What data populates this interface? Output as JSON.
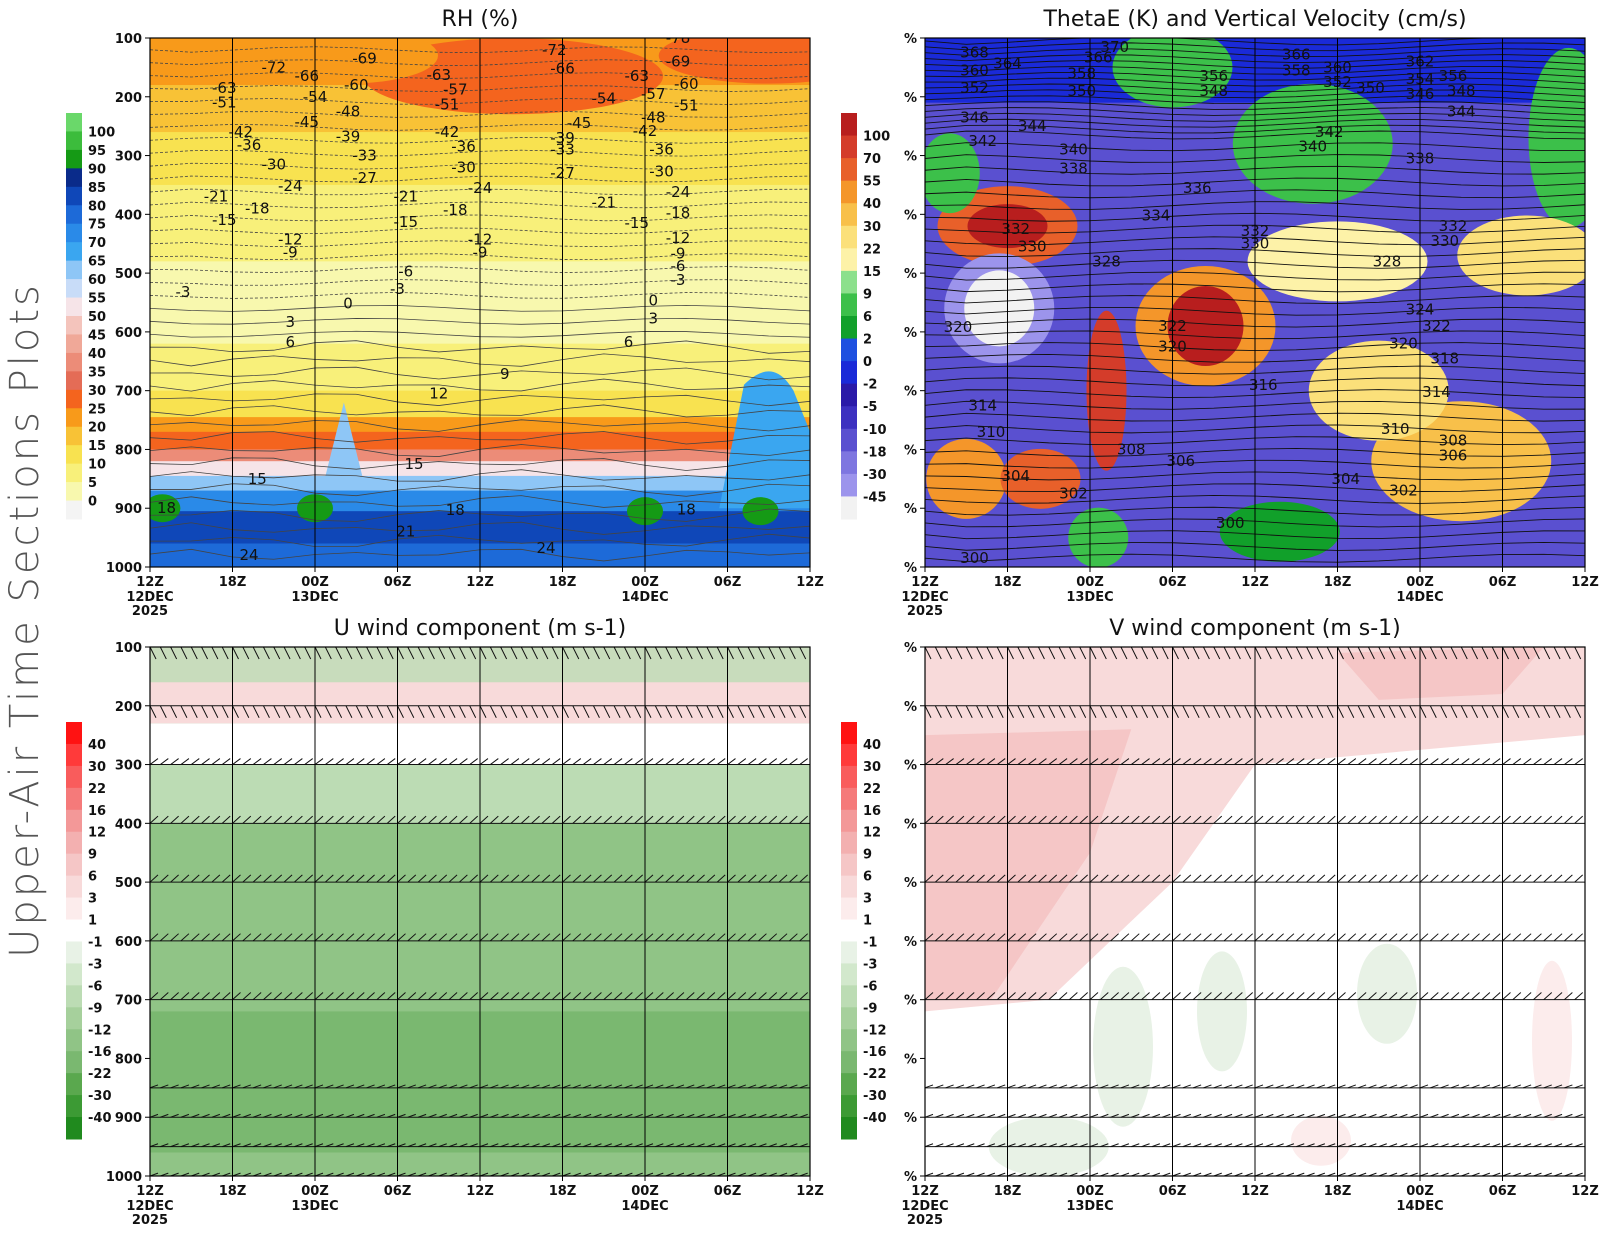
{
  "side_title": "Upper-Air Time Sections Plots",
  "time_axis": {
    "tick_labels": [
      "12Z",
      "18Z",
      "00Z",
      "06Z",
      "12Z",
      "18Z",
      "00Z",
      "06Z",
      "12Z"
    ],
    "date_labels": [
      {
        "at": 0,
        "lines": [
          "12DEC",
          "2025"
        ]
      },
      {
        "at": 2,
        "lines": [
          "13DEC"
        ]
      },
      {
        "at": 6,
        "lines": [
          "14DEC"
        ]
      }
    ]
  },
  "pressure_ticks": [
    "100",
    "200",
    "300",
    "400",
    "500",
    "600",
    "700",
    "800",
    "900",
    "1000"
  ],
  "percent_tick_label": "%",
  "chart_data": [
    {
      "type": "heatmap",
      "title": "RH (%)",
      "ylim": [
        100,
        1000
      ],
      "colorbar": {
        "labels": [
          "100",
          "95",
          "90",
          "85",
          "80",
          "75",
          "70",
          "65",
          "60",
          "55",
          "50",
          "45",
          "40",
          "35",
          "30",
          "25",
          "20",
          "15",
          "10",
          "5",
          "0"
        ],
        "colors": [
          "#6ad86a",
          "#3cbc3c",
          "#159a15",
          "#0a2b8a",
          "#0f47b8",
          "#1d6ad8",
          "#2a8ae8",
          "#3aa6f0",
          "#8ec6f6",
          "#c8dcf8",
          "#f6e4e8",
          "#f4c4bc",
          "#f0a898",
          "#ec8c78",
          "#e46c56",
          "#f4641e",
          "#f89a1a",
          "#f8c236",
          "#f8e250",
          "#f8f07a",
          "#f8f8ae",
          "#f4f4f4"
        ]
      },
      "contour_labels": [
        {
          "text": "-72",
          "t": 1.5,
          "p": 150
        },
        {
          "text": "-69",
          "t": 2.6,
          "p": 135
        },
        {
          "text": "-66",
          "t": 1.9,
          "p": 165
        },
        {
          "text": "-63",
          "t": 0.9,
          "p": 185
        },
        {
          "text": "-60",
          "t": 2.5,
          "p": 180
        },
        {
          "text": "-54",
          "t": 2.0,
          "p": 200
        },
        {
          "text": "-51",
          "t": 0.9,
          "p": 210
        },
        {
          "text": "-48",
          "t": 2.4,
          "p": 225
        },
        {
          "text": "-45",
          "t": 1.9,
          "p": 243
        },
        {
          "text": "-42",
          "t": 1.1,
          "p": 260
        },
        {
          "text": "-39",
          "t": 2.4,
          "p": 268
        },
        {
          "text": "-36",
          "t": 1.2,
          "p": 282
        },
        {
          "text": "-33",
          "t": 2.6,
          "p": 300
        },
        {
          "text": "-30",
          "t": 1.5,
          "p": 315
        },
        {
          "text": "-27",
          "t": 2.6,
          "p": 338
        },
        {
          "text": "-24",
          "t": 1.7,
          "p": 352
        },
        {
          "text": "-21",
          "t": 0.8,
          "p": 370
        },
        {
          "text": "-18",
          "t": 1.3,
          "p": 390
        },
        {
          "text": "-15",
          "t": 0.9,
          "p": 410
        },
        {
          "text": "-12",
          "t": 1.7,
          "p": 443
        },
        {
          "text": "-9",
          "t": 1.7,
          "p": 465
        },
        {
          "text": "-6",
          "t": 3.1,
          "p": 497
        },
        {
          "text": "-3",
          "t": 0.4,
          "p": 532
        },
        {
          "text": "0",
          "t": 2.4,
          "p": 552
        },
        {
          "text": "3",
          "t": 1.7,
          "p": 583
        },
        {
          "text": "6",
          "t": 1.7,
          "p": 617
        },
        {
          "text": "9",
          "t": 4.3,
          "p": 672
        },
        {
          "text": "12",
          "t": 3.5,
          "p": 705
        },
        {
          "text": "15",
          "t": 1.3,
          "p": 850
        },
        {
          "text": "18",
          "t": 0.2,
          "p": 900
        },
        {
          "text": "21",
          "t": 3.1,
          "p": 940
        },
        {
          "text": "24",
          "t": 1.2,
          "p": 980
        },
        {
          "text": "-63",
          "t": 3.5,
          "p": 163
        },
        {
          "text": "-57",
          "t": 3.7,
          "p": 188
        },
        {
          "text": "-51",
          "t": 3.6,
          "p": 213
        },
        {
          "text": "-42",
          "t": 3.6,
          "p": 260
        },
        {
          "text": "-36",
          "t": 3.8,
          "p": 285
        },
        {
          "text": "-30",
          "t": 3.8,
          "p": 320
        },
        {
          "text": "-24",
          "t": 4.0,
          "p": 355
        },
        {
          "text": "-21",
          "t": 3.1,
          "p": 370
        },
        {
          "text": "-18",
          "t": 3.7,
          "p": 393
        },
        {
          "text": "-15",
          "t": 3.1,
          "p": 413
        },
        {
          "text": "-12",
          "t": 4.0,
          "p": 443
        },
        {
          "text": "-9",
          "t": 4.0,
          "p": 465
        },
        {
          "text": "-3",
          "t": 3.0,
          "p": 527
        },
        {
          "text": "15",
          "t": 3.2,
          "p": 825
        },
        {
          "text": "18",
          "t": 3.7,
          "p": 903
        },
        {
          "text": "24",
          "t": 4.8,
          "p": 968
        },
        {
          "text": "-72",
          "t": 4.9,
          "p": 120
        },
        {
          "text": "-66",
          "t": 5.0,
          "p": 152
        },
        {
          "text": "-54",
          "t": 5.5,
          "p": 203
        },
        {
          "text": "-45",
          "t": 5.2,
          "p": 245
        },
        {
          "text": "-39",
          "t": 5.0,
          "p": 270
        },
        {
          "text": "-33",
          "t": 5.0,
          "p": 290
        },
        {
          "text": "-27",
          "t": 5.0,
          "p": 330
        },
        {
          "text": "-21",
          "t": 5.5,
          "p": 380
        },
        {
          "text": "-15",
          "t": 5.9,
          "p": 415
        },
        {
          "text": "-78",
          "t": 6.4,
          "p": 100
        },
        {
          "text": "-69",
          "t": 6.4,
          "p": 140
        },
        {
          "text": "-63",
          "t": 5.9,
          "p": 165
        },
        {
          "text": "-60",
          "t": 6.5,
          "p": 178
        },
        {
          "text": "-57",
          "t": 6.1,
          "p": 195
        },
        {
          "text": "-51",
          "t": 6.5,
          "p": 215
        },
        {
          "text": "-48",
          "t": 6.1,
          "p": 235
        },
        {
          "text": "-42",
          "t": 6.0,
          "p": 258
        },
        {
          "text": "-36",
          "t": 6.2,
          "p": 290
        },
        {
          "text": "-30",
          "t": 6.2,
          "p": 327
        },
        {
          "text": "-24",
          "t": 6.4,
          "p": 362
        },
        {
          "text": "-18",
          "t": 6.4,
          "p": 398
        },
        {
          "text": "-12",
          "t": 6.4,
          "p": 440
        },
        {
          "text": "-9",
          "t": 6.4,
          "p": 467
        },
        {
          "text": "-6",
          "t": 6.4,
          "p": 488
        },
        {
          "text": "-3",
          "t": 6.4,
          "p": 512
        },
        {
          "text": "0",
          "t": 6.1,
          "p": 547
        },
        {
          "text": "3",
          "t": 6.1,
          "p": 577
        },
        {
          "text": "6",
          "t": 5.8,
          "p": 617
        },
        {
          "text": "18",
          "t": 6.5,
          "p": 902
        }
      ]
    },
    {
      "type": "heatmap",
      "title": "ThetaE (K) and Vertical Velocity (cm/s)",
      "ylim": [
        100,
        1000
      ],
      "colorbar": {
        "labels": [
          "100",
          "70",
          "55",
          "40",
          "30",
          "22",
          "15",
          "9",
          "6",
          "2",
          "0",
          "-2",
          "-5",
          "-10",
          "-18",
          "-30",
          "-45"
        ],
        "colors": [
          "#b81e1e",
          "#d43c2a",
          "#e8602a",
          "#f4962a",
          "#f8c04a",
          "#fbe07a",
          "#fdf2a8",
          "#8ce08c",
          "#3cc04a",
          "#11a02a",
          "#1e50e0",
          "#1a2ad8",
          "#2a1aa8",
          "#3c30c0",
          "#5a50d0",
          "#7e76e0",
          "#9c94ec",
          "#f2f2f2"
        ]
      },
      "contour_labels": [
        {
          "text": "370",
          "t": 2.3,
          "p": 115
        },
        {
          "text": "368",
          "t": 0.6,
          "p": 125
        },
        {
          "text": "366",
          "t": 2.1,
          "p": 133
        },
        {
          "text": "364",
          "t": 1.0,
          "p": 143
        },
        {
          "text": "360",
          "t": 0.6,
          "p": 155
        },
        {
          "text": "358",
          "t": 1.9,
          "p": 160
        },
        {
          "text": "356",
          "t": 3.5,
          "p": 165
        },
        {
          "text": "352",
          "t": 0.6,
          "p": 185
        },
        {
          "text": "350",
          "t": 1.9,
          "p": 190
        },
        {
          "text": "348",
          "t": 3.5,
          "p": 190
        },
        {
          "text": "346",
          "t": 0.6,
          "p": 235
        },
        {
          "text": "344",
          "t": 1.3,
          "p": 250
        },
        {
          "text": "342",
          "t": 0.7,
          "p": 275
        },
        {
          "text": "340",
          "t": 1.8,
          "p": 290
        },
        {
          "text": "338",
          "t": 1.8,
          "p": 322
        },
        {
          "text": "336",
          "t": 3.3,
          "p": 355
        },
        {
          "text": "334",
          "t": 2.8,
          "p": 402
        },
        {
          "text": "332",
          "t": 1.1,
          "p": 425
        },
        {
          "text": "330",
          "t": 1.3,
          "p": 455
        },
        {
          "text": "328",
          "t": 2.2,
          "p": 480
        },
        {
          "text": "320",
          "t": 0.4,
          "p": 592
        },
        {
          "text": "322",
          "t": 3.0,
          "p": 590
        },
        {
          "text": "320",
          "t": 3.0,
          "p": 625
        },
        {
          "text": "316",
          "t": 4.1,
          "p": 690
        },
        {
          "text": "314",
          "t": 0.7,
          "p": 725
        },
        {
          "text": "310",
          "t": 0.8,
          "p": 770
        },
        {
          "text": "308",
          "t": 2.5,
          "p": 800
        },
        {
          "text": "306",
          "t": 3.1,
          "p": 820
        },
        {
          "text": "304",
          "t": 1.1,
          "p": 845
        },
        {
          "text": "302",
          "t": 1.8,
          "p": 875
        },
        {
          "text": "300",
          "t": 3.7,
          "p": 925
        },
        {
          "text": "300",
          "t": 0.6,
          "p": 985
        },
        {
          "text": "366",
          "t": 4.5,
          "p": 128
        },
        {
          "text": "358",
          "t": 4.5,
          "p": 155
        },
        {
          "text": "360",
          "t": 5.0,
          "p": 150
        },
        {
          "text": "352",
          "t": 5.0,
          "p": 175
        },
        {
          "text": "350",
          "t": 5.4,
          "p": 185
        },
        {
          "text": "340",
          "t": 4.7,
          "p": 285
        },
        {
          "text": "342",
          "t": 4.9,
          "p": 260
        },
        {
          "text": "332",
          "t": 4.0,
          "p": 428
        },
        {
          "text": "330",
          "t": 4.0,
          "p": 450
        },
        {
          "text": "324",
          "t": 6.0,
          "p": 562
        },
        {
          "text": "362",
          "t": 6.0,
          "p": 140
        },
        {
          "text": "354",
          "t": 6.0,
          "p": 170
        },
        {
          "text": "356",
          "t": 6.4,
          "p": 165
        },
        {
          "text": "346",
          "t": 6.0,
          "p": 195
        },
        {
          "text": "348",
          "t": 6.5,
          "p": 190
        },
        {
          "text": "344",
          "t": 6.5,
          "p": 225
        },
        {
          "text": "338",
          "t": 6.0,
          "p": 305
        },
        {
          "text": "332",
          "t": 6.4,
          "p": 420
        },
        {
          "text": "330",
          "t": 6.3,
          "p": 445
        },
        {
          "text": "328",
          "t": 5.6,
          "p": 480
        },
        {
          "text": "322",
          "t": 6.2,
          "p": 590
        },
        {
          "text": "320",
          "t": 5.8,
          "p": 620
        },
        {
          "text": "318",
          "t": 6.3,
          "p": 645
        },
        {
          "text": "314",
          "t": 6.2,
          "p": 702
        },
        {
          "text": "310",
          "t": 5.7,
          "p": 765
        },
        {
          "text": "308",
          "t": 6.4,
          "p": 785
        },
        {
          "text": "306",
          "t": 6.4,
          "p": 810
        },
        {
          "text": "304",
          "t": 5.1,
          "p": 850
        },
        {
          "text": "302",
          "t": 5.8,
          "p": 870
        }
      ]
    },
    {
      "type": "heatmap",
      "title": "U wind component (m s-1)",
      "ylim": [
        100,
        1000
      ],
      "colorbar": {
        "labels": [
          "40",
          "30",
          "22",
          "16",
          "12",
          "9",
          "6",
          "3",
          "1",
          "-1",
          "-3",
          "-6",
          "-9",
          "-12",
          "-16",
          "-22",
          "-30",
          "-40"
        ],
        "colors": [
          "#ff1212",
          "#ff3a3a",
          "#f95c5c",
          "#f57a7a",
          "#f39898",
          "#f3b0b0",
          "#f5c6c6",
          "#f8dada",
          "#fcecec",
          "#ffffff",
          "#e8f2e6",
          "#d2e8cc",
          "#bcdcb4",
          "#a6d09c",
          "#90c486",
          "#7ab870",
          "#5aa84e",
          "#3c9a34",
          "#208a1e"
        ]
      },
      "barb_levels": [
        100,
        200,
        300,
        400,
        500,
        600,
        700,
        850,
        900,
        950,
        1000
      ]
    },
    {
      "type": "heatmap",
      "title": "V wind component (m s-1)",
      "ylim": [
        100,
        1000
      ],
      "colorbar": {
        "labels": [
          "40",
          "30",
          "22",
          "16",
          "12",
          "9",
          "6",
          "3",
          "1",
          "-1",
          "-3",
          "-6",
          "-9",
          "-12",
          "-16",
          "-22",
          "-30",
          "-40"
        ],
        "colors": [
          "#ff1212",
          "#ff3a3a",
          "#f95c5c",
          "#f57a7a",
          "#f39898",
          "#f3b0b0",
          "#f5c6c6",
          "#f8dada",
          "#fcecec",
          "#ffffff",
          "#e8f2e6",
          "#d2e8cc",
          "#bcdcb4",
          "#a6d09c",
          "#90c486",
          "#7ab870",
          "#5aa84e",
          "#3c9a34",
          "#208a1e"
        ]
      },
      "barb_levels": [
        100,
        200,
        300,
        400,
        500,
        600,
        700,
        850,
        900,
        950,
        1000
      ]
    }
  ]
}
